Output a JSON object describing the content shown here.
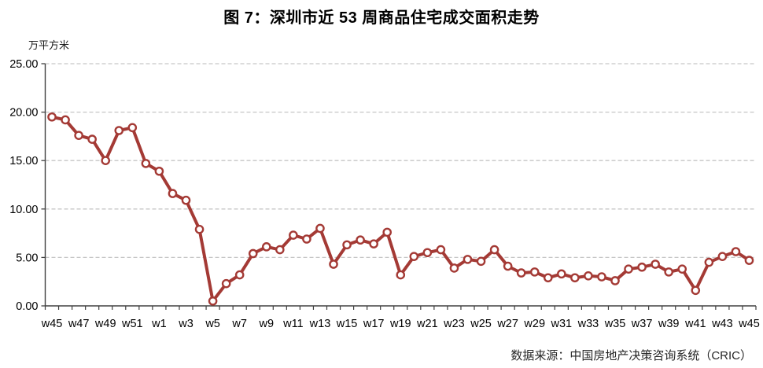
{
  "page": {
    "title": "图 7：深圳市近 53 周商品住宅成交面积走势",
    "source": "数据来源：中国房地产决策咨询系统（CRIC）"
  },
  "chart_data": {
    "type": "line",
    "title": "图 7：深圳市近 53 周商品住宅成交面积走势",
    "ylabel": "万平方米",
    "xlabel": "",
    "ylim": [
      0,
      25
    ],
    "ytick_interval": 5,
    "ytick_labels": [
      "0.00",
      "5.00",
      "10.00",
      "15.00",
      "20.00",
      "25.00"
    ],
    "grid": "horizontal-dashed",
    "legend_position": "none",
    "xtick_label_every": 2,
    "categories": [
      "w45",
      "w46",
      "w47",
      "w48",
      "w49",
      "w50",
      "w51",
      "w52",
      "w1",
      "w2",
      "w3",
      "w4",
      "w5",
      "w6",
      "w7",
      "w8",
      "w9",
      "w10",
      "w11",
      "w12",
      "w13",
      "w14",
      "w15",
      "w16",
      "w17",
      "w18",
      "w19",
      "w20",
      "w21",
      "w22",
      "w23",
      "w24",
      "w25",
      "w26",
      "w27",
      "w28",
      "w29",
      "w30",
      "w31",
      "w32",
      "w33",
      "w34",
      "w35",
      "w36",
      "w37",
      "w38",
      "w39",
      "w40",
      "w41",
      "w42",
      "w43",
      "w44",
      "w45"
    ],
    "values": [
      19.5,
      19.2,
      17.6,
      17.2,
      15.0,
      18.1,
      18.4,
      14.7,
      13.9,
      11.6,
      10.9,
      7.9,
      0.5,
      2.3,
      3.2,
      5.4,
      6.1,
      5.8,
      7.3,
      6.9,
      8.0,
      4.3,
      6.3,
      6.8,
      6.4,
      7.6,
      3.2,
      5.1,
      5.5,
      5.8,
      3.9,
      4.8,
      4.6,
      5.8,
      4.1,
      3.4,
      3.5,
      2.9,
      3.3,
      2.9,
      3.1,
      3.0,
      2.6,
      3.8,
      4.0,
      4.3,
      3.5,
      3.8,
      1.6,
      4.5,
      5.1,
      5.6,
      4.7
    ],
    "colors": {
      "line": "#A43A35",
      "marker_fill": "#FFFFFF",
      "gridline": "#C6C6C6",
      "axis": "#404040",
      "tick_label": "#000000"
    }
  }
}
